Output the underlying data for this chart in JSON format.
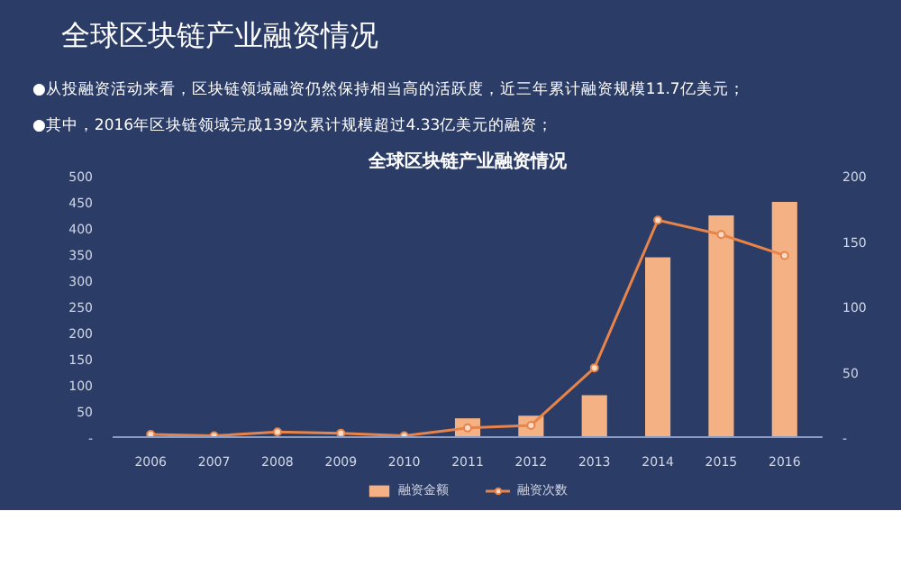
{
  "chart_data": {
    "type": "bar",
    "title": "全球区块链产业融资情况",
    "annotations": [
      "全球区块链产业融资情况",
      "●从投融资活动来看，区块链领域融资仍然保持相当高的活跃度，近三年累计融资规模11.7亿美元；",
      "●其中，2016年区块链领域完成139次累计规模超过4.33亿美元的融资；"
    ],
    "categories": [
      "2006",
      "2007",
      "2008",
      "2009",
      "2010",
      "2011",
      "2012",
      "2013",
      "2014",
      "2015",
      "2016"
    ],
    "series": [
      {
        "name": "融资金额",
        "color": "#f4b183",
        "values": [
          0,
          0,
          0,
          0,
          0,
          36,
          41,
          80,
          344,
          424,
          450
        ]
      },
      {
        "name": "融资次数",
        "type": "line",
        "axis": "y2",
        "color": "#e8844a",
        "marker": "circle",
        "values": [
          2,
          1,
          4,
          3,
          1,
          7,
          9,
          53,
          166,
          155,
          139
        ]
      }
    ],
    "ylim": [
      0,
      500
    ],
    "yticks": [
      {
        "value": 0,
        "label": "-"
      },
      50,
      100,
      150,
      200,
      250,
      300,
      350,
      400,
      450,
      500
    ],
    "y2lim": [
      0,
      200
    ],
    "y2ticks": [
      {
        "value": 0,
        "label": "-"
      },
      50,
      100,
      150,
      200
    ],
    "legend": "bottom"
  }
}
